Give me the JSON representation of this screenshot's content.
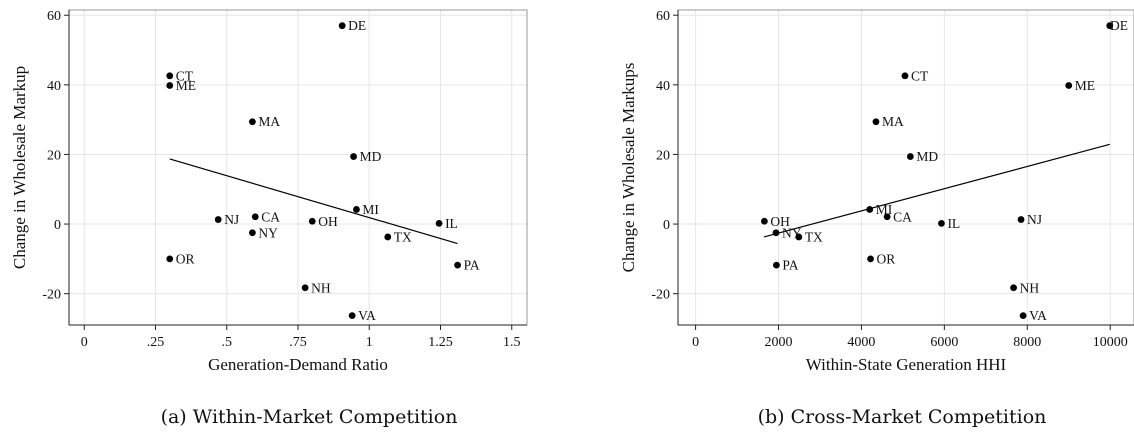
{
  "chart_data": [
    {
      "type": "scatter",
      "xlabel": "Generation-Demand Ratio",
      "ylabel": "Change in Wholesale Markup",
      "caption": "(a) Within-Market Competition",
      "xlim": [
        -0.05,
        1.55
      ],
      "ylim": [
        -29,
        61.5
      ],
      "xticks": [
        {
          "v": 0,
          "label": "0"
        },
        {
          "v": 0.25,
          "label": ".25"
        },
        {
          "v": 0.5,
          "label": ".5"
        },
        {
          "v": 0.75,
          "label": ".75"
        },
        {
          "v": 1,
          "label": "1"
        },
        {
          "v": 1.25,
          "label": "1.25"
        },
        {
          "v": 1.5,
          "label": "1.5"
        }
      ],
      "yticks": [
        {
          "v": -20,
          "label": "-20"
        },
        {
          "v": 0,
          "label": "0"
        },
        {
          "v": 20,
          "label": "20"
        },
        {
          "v": 40,
          "label": "40"
        },
        {
          "v": 60,
          "label": "60"
        }
      ],
      "points": [
        {
          "label": "DE",
          "x": 0.905,
          "y": 57
        },
        {
          "label": "CT",
          "x": 0.3,
          "y": 42.6
        },
        {
          "label": "ME",
          "x": 0.3,
          "y": 39.8
        },
        {
          "label": "MA",
          "x": 0.59,
          "y": 29.4
        },
        {
          "label": "MD",
          "x": 0.945,
          "y": 19.4
        },
        {
          "label": "MI",
          "x": 0.955,
          "y": 4.2
        },
        {
          "label": "NJ",
          "x": 0.47,
          "y": 1.3
        },
        {
          "label": "CA",
          "x": 0.6,
          "y": 2.1
        },
        {
          "label": "OH",
          "x": 0.8,
          "y": 0.8
        },
        {
          "label": "IL",
          "x": 1.245,
          "y": 0.2
        },
        {
          "label": "NY",
          "x": 0.59,
          "y": -2.5
        },
        {
          "label": "TX",
          "x": 1.065,
          "y": -3.7
        },
        {
          "label": "OR",
          "x": 0.3,
          "y": -10
        },
        {
          "label": "PA",
          "x": 1.31,
          "y": -11.8
        },
        {
          "label": "NH",
          "x": 0.775,
          "y": -18.3
        },
        {
          "label": "VA",
          "x": 0.94,
          "y": -26.3
        }
      ],
      "fit": {
        "x1": 0.3,
        "y1": 18.7,
        "x2": 1.31,
        "y2": -5.6
      }
    },
    {
      "type": "scatter",
      "xlabel": "Within-State Generation HHI",
      "ylabel": "Change in Wholesale Markups",
      "caption": "(b) Cross-Market Competition",
      "xlim": [
        -400,
        10550
      ],
      "ylim": [
        -29,
        61.5
      ],
      "xticks": [
        {
          "v": 0,
          "label": "0"
        },
        {
          "v": 2000,
          "label": "2000"
        },
        {
          "v": 4000,
          "label": "4000"
        },
        {
          "v": 6000,
          "label": "6000"
        },
        {
          "v": 8000,
          "label": "8000"
        },
        {
          "v": 10000,
          "label": "10000"
        }
      ],
      "yticks": [
        {
          "v": -20,
          "label": "-20"
        },
        {
          "v": 0,
          "label": "0"
        },
        {
          "v": 20,
          "label": "20"
        },
        {
          "v": 40,
          "label": "40"
        },
        {
          "v": 60,
          "label": "60"
        }
      ],
      "points": [
        {
          "label": "DE",
          "x": 9990,
          "y": 57
        },
        {
          "label": "CT",
          "x": 5050,
          "y": 42.6
        },
        {
          "label": "ME",
          "x": 9000,
          "y": 39.8
        },
        {
          "label": "MA",
          "x": 4350,
          "y": 29.4
        },
        {
          "label": "MD",
          "x": 5180,
          "y": 19.4
        },
        {
          "label": "MI",
          "x": 4200,
          "y": 4.2
        },
        {
          "label": "CA",
          "x": 4620,
          "y": 2.1
        },
        {
          "label": "OH",
          "x": 1660,
          "y": 0.8
        },
        {
          "label": "NJ",
          "x": 7850,
          "y": 1.3
        },
        {
          "label": "IL",
          "x": 5930,
          "y": 0.2
        },
        {
          "label": "NY",
          "x": 1940,
          "y": -2.5
        },
        {
          "label": "TX",
          "x": 2490,
          "y": -3.7
        },
        {
          "label": "OR",
          "x": 4220,
          "y": -10
        },
        {
          "label": "PA",
          "x": 1950,
          "y": -11.8
        },
        {
          "label": "NH",
          "x": 7670,
          "y": -18.3
        },
        {
          "label": "VA",
          "x": 7900,
          "y": -26.3
        }
      ],
      "fit": {
        "x1": 1650,
        "y1": -3.7,
        "x2": 9990,
        "y2": 22.9
      }
    }
  ]
}
